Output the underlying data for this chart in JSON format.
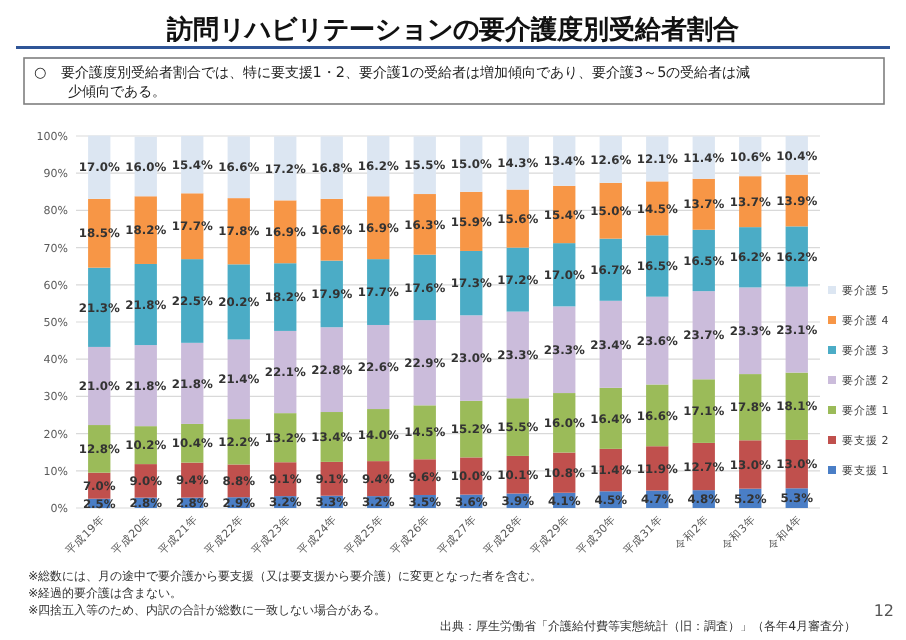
{
  "chart_data": {
    "type": "bar",
    "stacked": true,
    "title": "訪問リハビリテーションの要介護度別受給者割合",
    "subtitle": "○　要介護度別受給者割合では、特に要支援1・2、要介護1の受給者は増加傾向であり、要介護3～5の受給者は減少傾向である。",
    "categories": [
      "平成19年",
      "平成20年",
      "平成21年",
      "平成22年",
      "平成23年",
      "平成24年",
      "平成25年",
      "平成26年",
      "平成27年",
      "平成28年",
      "平成29年",
      "平成30年",
      "平成31年",
      "令和2年",
      "令和3年",
      "令和4年"
    ],
    "series": [
      {
        "name": "要支援 1",
        "color": "#4a7ec6",
        "values": [
          2.5,
          2.8,
          2.8,
          2.9,
          3.2,
          3.3,
          3.2,
          3.5,
          3.6,
          3.9,
          4.1,
          4.5,
          4.7,
          4.8,
          5.2,
          5.3
        ],
        "value_labels": [
          "2.5%",
          "2.8%",
          "2.8%",
          "2.9%",
          "3.2%",
          "3.3%",
          "3.2%",
          "3.5%",
          "3.6%",
          "3.9%",
          "4.1%",
          "4.5%",
          "4.7%",
          "4.8%",
          "5.2%",
          "5.3%"
        ]
      },
      {
        "name": "要支援 2",
        "color": "#c0504d",
        "values": [
          7.0,
          9.0,
          9.4,
          8.8,
          9.1,
          9.1,
          9.4,
          9.6,
          10.0,
          10.1,
          10.8,
          11.4,
          11.9,
          12.7,
          13.0,
          13.0
        ],
        "value_labels": [
          "7.0%",
          "9.0%",
          "9.4%",
          "8.8%",
          "9.1%",
          "9.1%",
          "9.4%",
          "9.6%",
          "10.0%",
          "10.1%",
          "10.8%",
          "11.4%",
          "11.9%",
          "12.7%",
          "13.0%",
          "13.0%"
        ]
      },
      {
        "name": "要介護 1",
        "color": "#9bbb59",
        "values": [
          12.8,
          10.2,
          10.4,
          12.2,
          13.2,
          13.4,
          14.0,
          14.5,
          15.2,
          15.5,
          16.0,
          16.4,
          16.6,
          17.1,
          17.8,
          18.1
        ],
        "value_labels": [
          "12.8%",
          "10.2%",
          "10.4%",
          "12.2%",
          "13.2%",
          "13.4%",
          "14.0%",
          "14.5%",
          "15.2%",
          "15.5%",
          "16.0%",
          "16.4%",
          "16.6%",
          "17.1%",
          "17.8%",
          "18.1%"
        ]
      },
      {
        "name": "要介護 2",
        "color": "#cbbcdb",
        "values": [
          21.0,
          21.8,
          21.8,
          21.4,
          22.1,
          22.8,
          22.6,
          22.9,
          23.0,
          23.3,
          23.3,
          23.4,
          23.6,
          23.7,
          23.3,
          23.1
        ],
        "value_labels": [
          "21.0%",
          "21.8%",
          "21.8%",
          "21.4%",
          "22.1%",
          "22.8%",
          "22.6%",
          "22.9%",
          "23.0%",
          "23.3%",
          "23.3%",
          "23.4%",
          "23.6%",
          "23.7%",
          "23.3%",
          "23.1%"
        ]
      },
      {
        "name": "要介護 3",
        "color": "#4bacc6",
        "values": [
          21.3,
          21.8,
          22.5,
          20.2,
          18.2,
          17.9,
          17.7,
          17.6,
          17.3,
          17.2,
          17.0,
          16.7,
          16.5,
          16.5,
          16.2,
          16.2
        ],
        "value_labels": [
          "21.3%",
          "21.8%",
          "22.5%",
          "20.2%",
          "18.2%",
          "17.9%",
          "17.7%",
          "17.6%",
          "17.3%",
          "17.2%",
          "17.0%",
          "16.7%",
          "16.5%",
          "16.5%",
          "16.2%",
          "16.2%"
        ]
      },
      {
        "name": "要介護 4",
        "color": "#f79646",
        "values": [
          18.5,
          18.2,
          17.7,
          17.8,
          16.9,
          16.6,
          16.9,
          16.3,
          15.9,
          15.6,
          15.4,
          15.0,
          14.5,
          13.7,
          13.7,
          13.9
        ],
        "value_labels": [
          "18.5%",
          "18.2%",
          "17.7%",
          "17.8%",
          "16.9%",
          "16.6%",
          "16.9%",
          "16.3%",
          "15.9%",
          "15.6%",
          "15.4%",
          "15.0%",
          "14.5%",
          "13.7%",
          "13.7%",
          "13.9%"
        ]
      },
      {
        "name": "要介護 5",
        "color": "#dce6f2",
        "values": [
          17.0,
          16.0,
          15.4,
          16.6,
          17.2,
          16.8,
          16.2,
          15.5,
          15.0,
          14.3,
          13.4,
          12.6,
          12.1,
          11.4,
          10.6,
          10.4
        ],
        "value_labels": [
          "17.0%",
          "16.0%",
          "15.4%",
          "16.6%",
          "17.2%",
          "16.8%",
          "16.2%",
          "15.5%",
          "15.0%",
          "14.3%",
          "13.4%",
          "12.6%",
          "12.1%",
          "11.4%",
          "10.6%",
          "10.4%"
        ]
      }
    ],
    "ylim": [
      0,
      100
    ],
    "yticks": [
      {
        "value": 0,
        "label": "0%"
      },
      {
        "value": 10,
        "label": "10%"
      },
      {
        "value": 20,
        "label": "20%"
      },
      {
        "value": 30,
        "label": "30%"
      },
      {
        "value": 40,
        "label": "40%"
      },
      {
        "value": 50,
        "label": "50%"
      },
      {
        "value": 60,
        "label": "60%"
      },
      {
        "value": 70,
        "label": "70%"
      },
      {
        "value": 80,
        "label": "80%"
      },
      {
        "value": 90,
        "label": "90%"
      },
      {
        "value": 100,
        "label": "100%"
      }
    ],
    "grid": "y",
    "legend": "right",
    "annotations": [
      "※総数には、月の途中で要介護から要支援（又は要支援から要介護）に変更となった者を含む。",
      "※経過的要介護は含まない。",
      "※四捨五入等のため、内訳の合計が総数に一致しない場合がある。",
      "出典：厚生労働省「介護給付費等実態統計（旧：調査）」（各年4月審査分）",
      "12"
    ]
  }
}
